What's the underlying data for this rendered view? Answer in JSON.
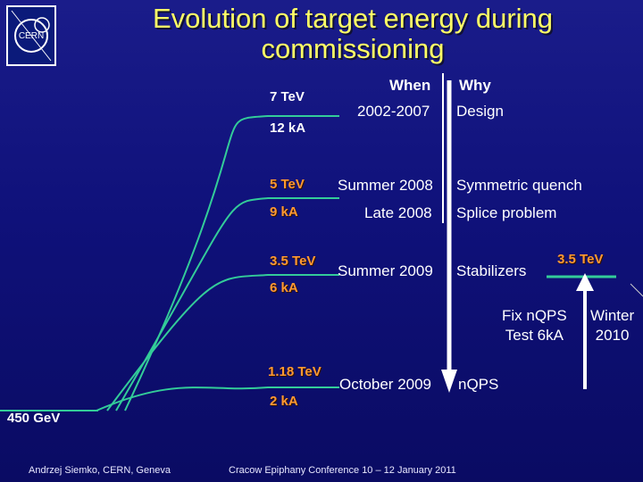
{
  "slide": {
    "title_line1": "Evolution of target energy during",
    "title_line2": "commissioning",
    "logo_text": "CERN",
    "columns": {
      "when": "When",
      "why": "Why"
    },
    "steps": [
      {
        "energy": "7 TeV",
        "current": "12 kA",
        "when": "2002-2007",
        "why": "Design"
      },
      {
        "energy": "5 TeV",
        "current": "9 kA",
        "when": "Summer 2008",
        "why": "Symmetric quench"
      },
      {
        "energy": "",
        "current": "",
        "when": "Late 2008",
        "why": "Splice problem"
      },
      {
        "energy": "3.5 TeV",
        "current": "6 kA",
        "when": "Summer 2009",
        "why": "Stabilizers"
      },
      {
        "energy": "1.18 TeV",
        "current": "2 kA",
        "when": "October 2009",
        "why": "nQPS"
      }
    ],
    "injection_label": "450 GeV",
    "right_target": "3.5 TeV",
    "fix_line1": "Fix nQPS",
    "fix_line2": "Test 6kA",
    "winter_line1": "Winter",
    "winter_line2": "2010",
    "footer_left": "Andrzej Siemko, CERN, Geneva",
    "footer_center": "Cracow Epiphany Conference   10 – 12 January 2011",
    "colors": {
      "title": "#ffff66",
      "orange": "#ff9933",
      "line": "#33cc99",
      "background": "#12147f"
    }
  }
}
